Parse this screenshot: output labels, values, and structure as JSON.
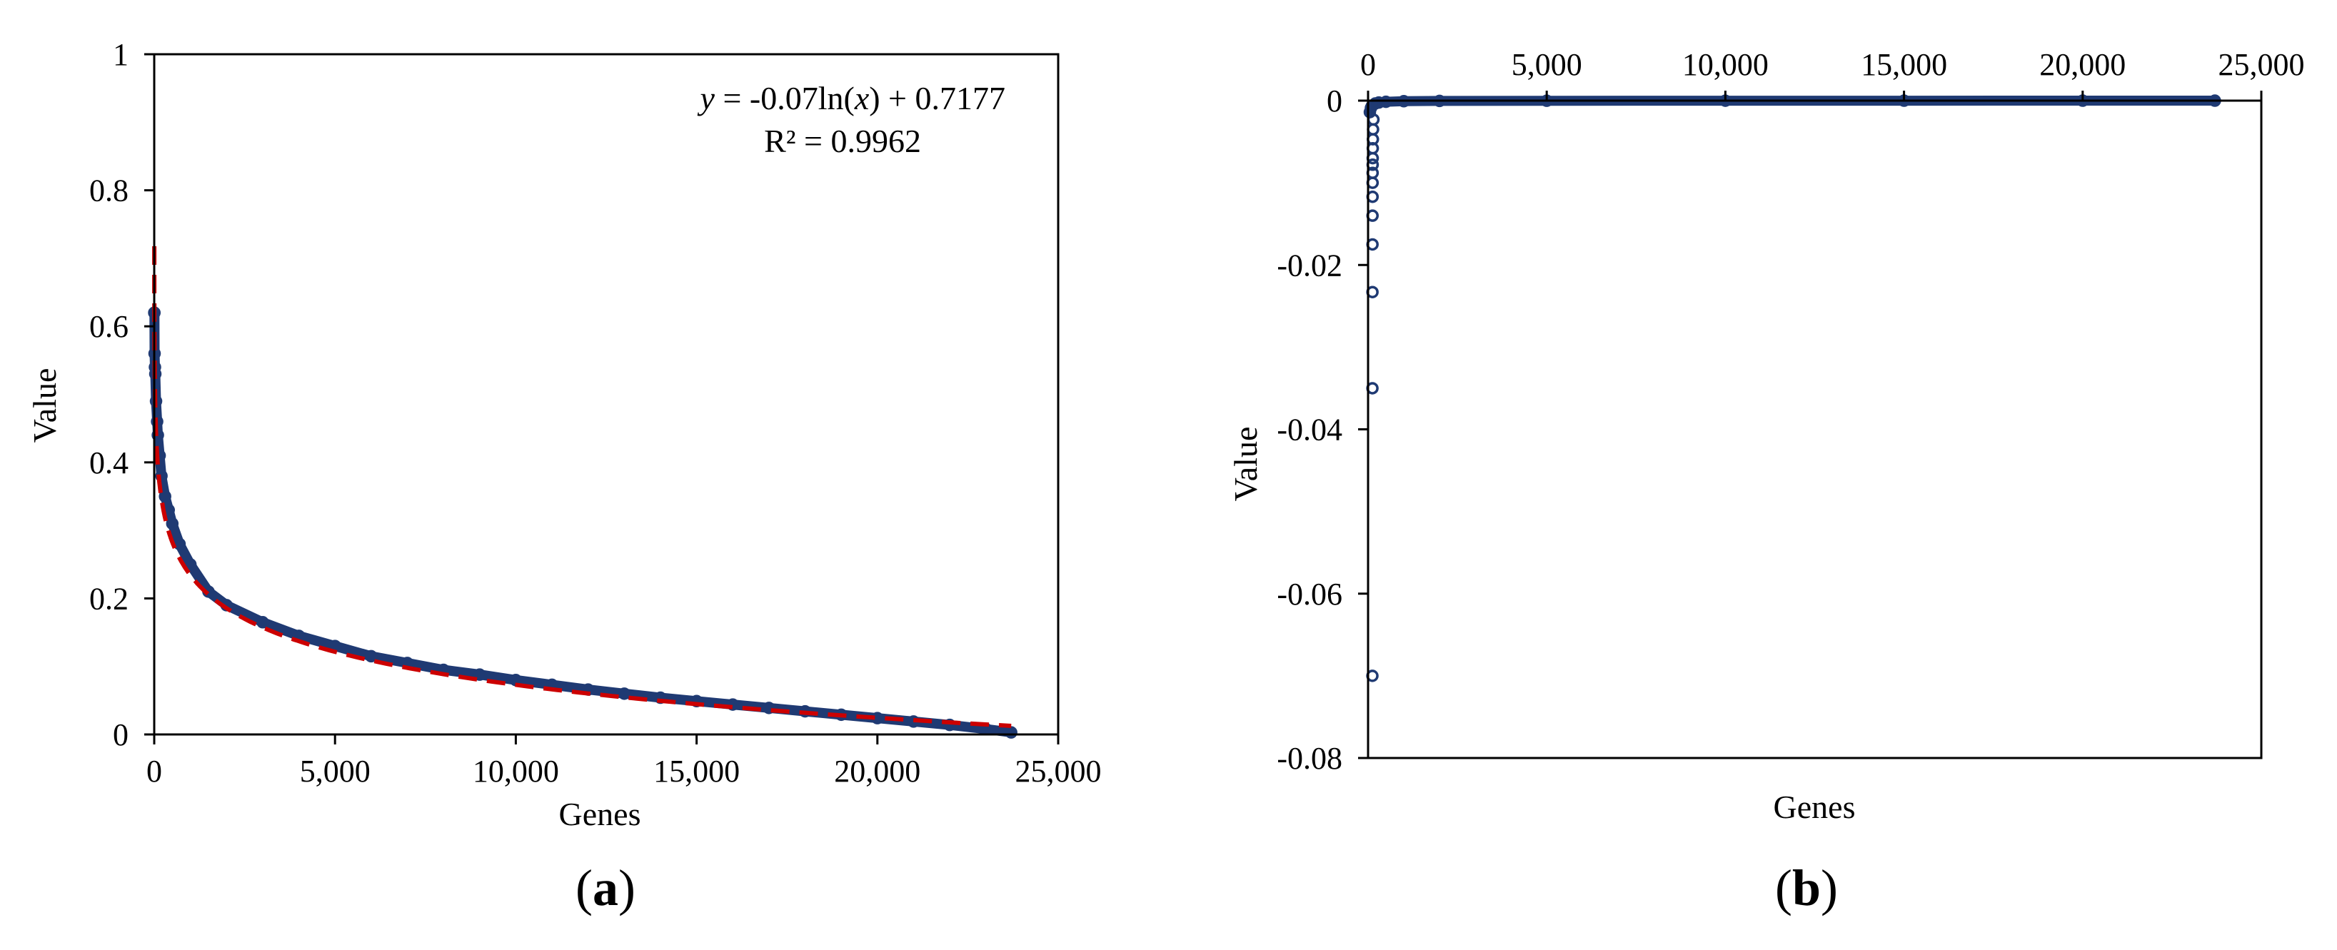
{
  "chart_data": [
    {
      "type": "scatter",
      "panel_label": "a",
      "xlabel": "Genes",
      "ylabel": "Value",
      "xlim": [
        0,
        25000
      ],
      "ylim": [
        0,
        1
      ],
      "x_ticks": [
        0,
        5000,
        10000,
        15000,
        20000,
        25000
      ],
      "x_tick_labels": [
        "0",
        "5,000",
        "10,000",
        "15,000",
        "20,000",
        "25,000"
      ],
      "y_ticks": [
        0,
        0.2,
        0.4,
        0.6,
        0.8,
        1
      ],
      "y_tick_labels": [
        "0",
        "0.2",
        "0.4",
        "0.6",
        "0.8",
        "1"
      ],
      "grid": false,
      "series": [
        {
          "marker": "circle",
          "color": "#1f3a73",
          "x": [
            1,
            5,
            10,
            20,
            30,
            50,
            80,
            100,
            150,
            200,
            300,
            400,
            500,
            700,
            1000,
            1500,
            2000,
            3000,
            4000,
            5000,
            6000,
            7000,
            8000,
            9000,
            10000,
            11000,
            12000,
            13000,
            14000,
            15000,
            16000,
            17000,
            18000,
            19000,
            20000,
            21000,
            22000,
            23000,
            23700
          ],
          "y": [
            0.62,
            0.62,
            0.56,
            0.54,
            0.53,
            0.49,
            0.46,
            0.44,
            0.41,
            0.38,
            0.35,
            0.33,
            0.31,
            0.28,
            0.25,
            0.21,
            0.19,
            0.165,
            0.145,
            0.13,
            0.115,
            0.105,
            0.095,
            0.088,
            0.08,
            0.073,
            0.066,
            0.06,
            0.054,
            0.049,
            0.044,
            0.039,
            0.034,
            0.029,
            0.024,
            0.019,
            0.014,
            0.008,
            0.003
          ]
        }
      ],
      "trendline": {
        "type": "log",
        "color": "#cc0000",
        "style": "dashed",
        "coef": -0.07,
        "intercept": 0.7177,
        "x_range": [
          1,
          23700
        ],
        "equation_y": "y",
        "equation_rest": " = -0.07ln(",
        "equation_x": "x",
        "equation_end": ") + 0.7177",
        "r2_label": "R² = 0.9962"
      }
    },
    {
      "type": "scatter",
      "panel_label": "b",
      "xlabel": "Genes",
      "ylabel": "Value",
      "xlim": [
        0,
        25000
      ],
      "ylim": [
        -0.08,
        0
      ],
      "x_axis_position": "top",
      "x_ticks": [
        0,
        5000,
        10000,
        15000,
        20000,
        25000
      ],
      "x_tick_labels": [
        "0",
        "5,000",
        "10,000",
        "15,000",
        "20,000",
        "25,000"
      ],
      "y_ticks": [
        0,
        -0.02,
        -0.04,
        -0.06,
        -0.08
      ],
      "y_tick_labels": [
        "0",
        "-0.02",
        "-0.04",
        "-0.06",
        "-0.08"
      ],
      "grid": false,
      "series": [
        {
          "marker": "circle",
          "color": "#1f3a73",
          "x": [
            1,
            2,
            3,
            4,
            5,
            6,
            7,
            8,
            9,
            10,
            12,
            15,
            20,
            30,
            50,
            80,
            100,
            200,
            300,
            500,
            1000,
            2000,
            5000,
            10000,
            15000,
            20000,
            23700
          ],
          "y": [
            -0.07,
            -0.035,
            -0.0233,
            -0.0175,
            -0.014,
            -0.0117,
            -0.01,
            -0.0088,
            -0.0078,
            -0.007,
            -0.0058,
            -0.0047,
            -0.0035,
            -0.0023,
            -0.0014,
            -0.0009,
            -0.0007,
            -0.00035,
            -0.00023,
            -0.00014,
            -7e-05,
            -3.5e-05,
            -1.4e-05,
            -7e-06,
            -4.7e-06,
            -3.5e-06,
            -3e-06
          ]
        }
      ]
    }
  ]
}
